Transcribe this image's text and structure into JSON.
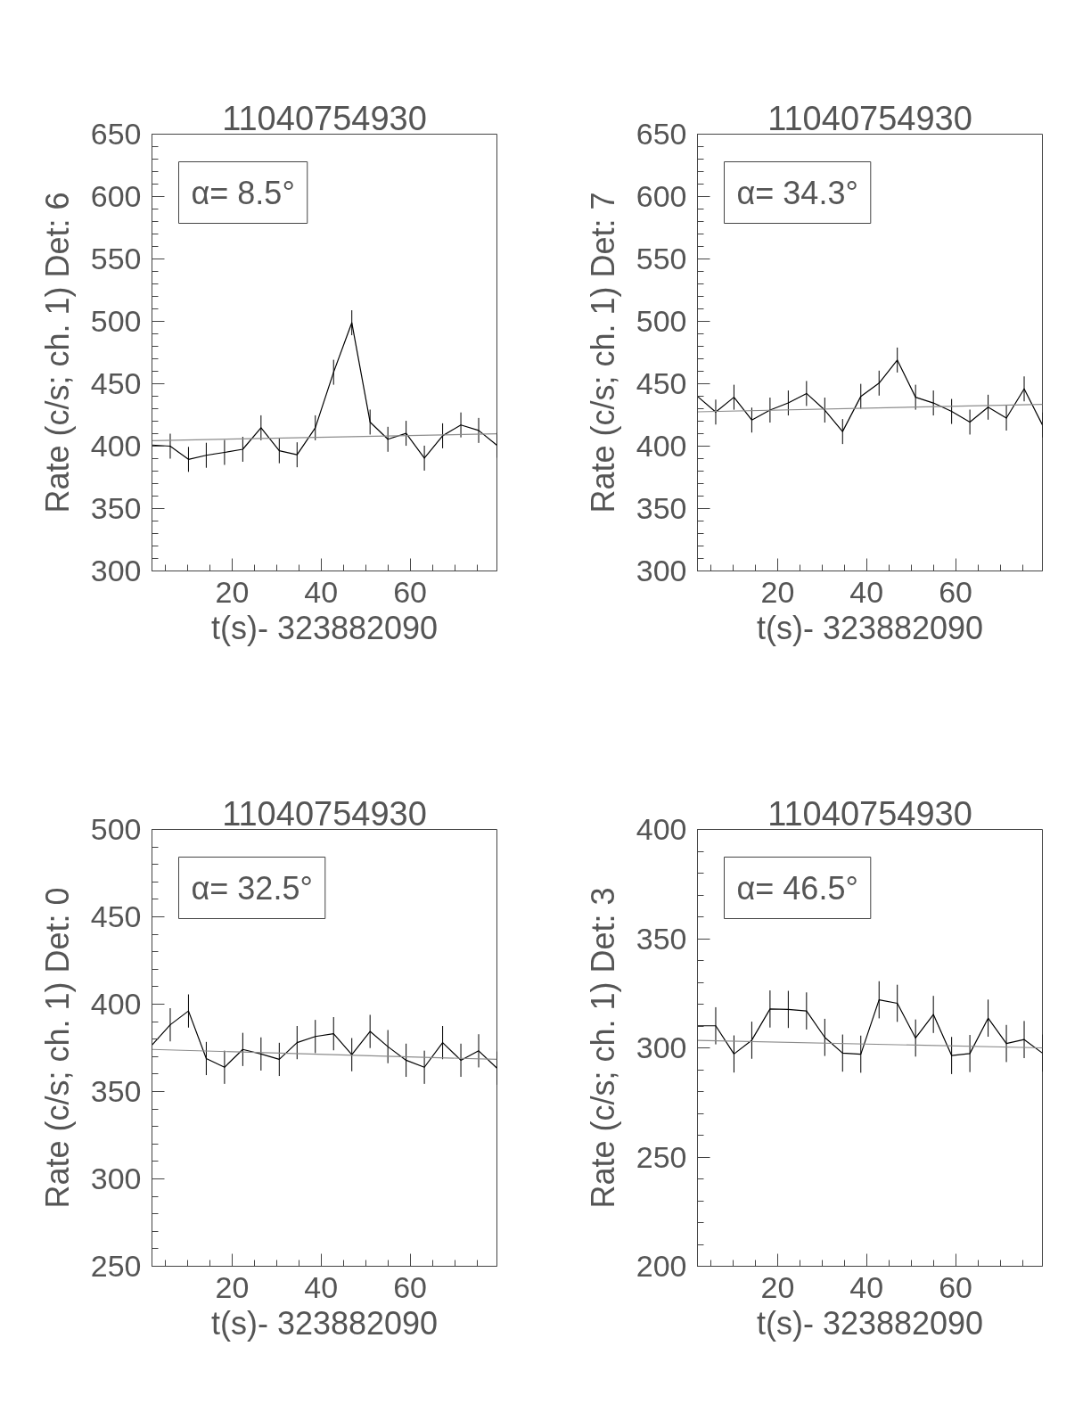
{
  "chart_data": [
    {
      "type": "line",
      "title": "11040754930",
      "xlabel": "t(s)- 323882090",
      "ylabel": "Rate (c/s; ch. 1) Det: 6",
      "annotations": [
        "α= 8.5°"
      ],
      "xlim": [
        2,
        79.5
      ],
      "xticks": [
        20,
        40,
        60
      ],
      "ylim": [
        300,
        650
      ],
      "yticks": [
        300,
        350,
        400,
        450,
        500,
        550,
        600,
        650
      ],
      "series": [
        {
          "color": "#000000",
          "x": [
            2,
            6.1,
            10.2,
            14.2,
            18.3,
            22.4,
            26.5,
            30.6,
            34.6,
            38.7,
            42.8,
            46.9,
            51.0,
            55.0,
            59.1,
            63.2,
            67.3,
            71.4,
            75.4,
            79.5
          ],
          "values": [
            400.9,
            400,
            389.4,
            392.7,
            395,
            397.5,
            414.7,
            396.3,
            393.1,
            414.7,
            459.2,
            498.9,
            419.3,
            405.5,
            410.3,
            390.4,
            408.3,
            417,
            412.6,
            400.7
          ],
          "errors": [
            10,
            10,
            10,
            10,
            10,
            10,
            10,
            10,
            10,
            10,
            10,
            10,
            10,
            10,
            10,
            10,
            10,
            10,
            10,
            10
          ]
        },
        {
          "color": "#8c8c8c",
          "x": [
            2,
            79.5
          ],
          "values": [
            404.4,
            409.9
          ]
        }
      ]
    },
    {
      "type": "line",
      "title": "11040754930",
      "xlabel": "t(s)- 323882090",
      "ylabel": "Rate (c/s; ch. 1) Det: 7",
      "annotations": [
        "α= 34.3°"
      ],
      "xlim": [
        2,
        79.5
      ],
      "xticks": [
        20,
        40,
        60
      ],
      "ylim": [
        300,
        650
      ],
      "yticks": [
        300,
        350,
        400,
        450,
        500,
        550,
        600,
        650
      ],
      "series": [
        {
          "color": "#000000",
          "x": [
            2,
            6.1,
            10.2,
            14.2,
            18.3,
            22.4,
            26.5,
            30.6,
            34.6,
            38.7,
            42.8,
            46.9,
            51.0,
            55.0,
            59.1,
            63.2,
            67.3,
            71.4,
            75.4,
            79.5
          ],
          "values": [
            439.9,
            427.3,
            439.2,
            420.9,
            428.9,
            434.6,
            442.2,
            428.9,
            411.7,
            439.9,
            450.5,
            469.0,
            439.2,
            434.6,
            427.8,
            419.3,
            431.2,
            422.5,
            445.9,
            417.0
          ],
          "errors": [
            10,
            10,
            10,
            10,
            10,
            10,
            10,
            10,
            10,
            10,
            10,
            10,
            10,
            10,
            10,
            10,
            10,
            10,
            10,
            10
          ]
        },
        {
          "color": "#8c8c8c",
          "x": [
            2,
            79.5
          ],
          "values": [
            427.5,
            433.5
          ]
        }
      ]
    },
    {
      "type": "line",
      "title": "11040754930",
      "xlabel": "t(s)- 323882090",
      "ylabel": "Rate (c/s; ch. 1) Det: 0",
      "annotations": [
        "α= 32.5°"
      ],
      "xlim": [
        2,
        79.5
      ],
      "xticks": [
        20,
        40,
        60
      ],
      "ylim": [
        250,
        500
      ],
      "yticks": [
        250,
        300,
        350,
        400,
        450,
        500
      ],
      "series": [
        {
          "color": "#000000",
          "x": [
            2,
            6.1,
            10.2,
            14.2,
            18.3,
            22.4,
            26.5,
            30.6,
            34.6,
            38.7,
            42.8,
            46.9,
            51.0,
            55.0,
            59.1,
            63.2,
            67.3,
            71.4,
            75.4,
            79.5
          ],
          "values": [
            376.6,
            388.2,
            396.1,
            368.9,
            363.9,
            374.1,
            371.5,
            368.4,
            378.0,
            381.5,
            383.1,
            371.1,
            384.4,
            375.7,
            367.9,
            363.9,
            378.0,
            367.9,
            373.3,
            363.4
          ],
          "errors": [
            9.5,
            9.5,
            9.5,
            9.5,
            9.5,
            9.5,
            9.5,
            9.5,
            9.5,
            9.5,
            9.5,
            9.5,
            9.5,
            9.5,
            9.5,
            9.5,
            9.5,
            9.5,
            9.5,
            9.5
          ]
        },
        {
          "color": "#8c8c8c",
          "x": [
            2,
            79.5
          ],
          "values": [
            374.1,
            368.4
          ]
        }
      ]
    },
    {
      "type": "line",
      "title": "11040754930",
      "xlabel": "t(s)- 323882090",
      "ylabel": "Rate (c/s; ch. 1) Det: 3",
      "annotations": [
        "α= 46.5°"
      ],
      "xlim": [
        2,
        79.5
      ],
      "xticks": [
        20,
        40,
        60
      ],
      "ylim": [
        200,
        400
      ],
      "yticks": [
        200,
        250,
        300,
        350,
        400
      ],
      "series": [
        {
          "color": "#000000",
          "x": [
            2,
            6.1,
            10.2,
            14.2,
            18.3,
            22.4,
            26.5,
            30.6,
            34.6,
            38.7,
            42.8,
            46.9,
            51.0,
            55.0,
            59.1,
            63.2,
            67.3,
            71.4,
            75.4,
            79.5
          ],
          "values": [
            310.1,
            310.1,
            297.2,
            303.5,
            317.8,
            317.6,
            316.9,
            304.8,
            297.6,
            297.1,
            322.0,
            320.4,
            304.5,
            315.3,
            296.5,
            297.4,
            313.6,
            302.0,
            303.8,
            297.6
          ],
          "errors": [
            8.5,
            8.5,
            8.5,
            8.5,
            8.5,
            8.5,
            8.5,
            8.5,
            8.5,
            8.5,
            8.5,
            8.5,
            8.5,
            8.5,
            8.5,
            8.5,
            8.5,
            8.5,
            8.5,
            8.5
          ]
        },
        {
          "color": "#8c8c8c",
          "x": [
            2,
            79.5
          ],
          "values": [
            303.4,
            300
          ]
        }
      ]
    }
  ]
}
